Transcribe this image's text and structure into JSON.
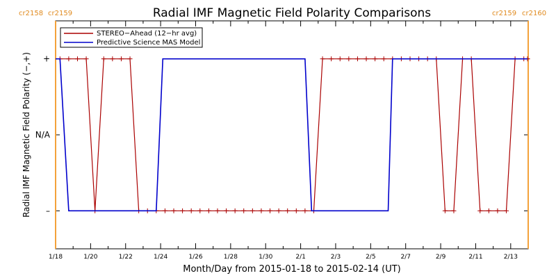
{
  "chart_data": {
    "type": "line",
    "title": "Radial IMF Magnetic Field Polarity Comparisons",
    "xlabel": "Month/Day from 2015-01-18 to 2015-02-14 (UT)",
    "ylabel": "Radial IMF Magnetic Field Polarity (−,+)",
    "y_categories": [
      "–",
      "N/A",
      "+"
    ],
    "y_category_values": [
      -1,
      0,
      1
    ],
    "ylim": [
      -1.5,
      1.5
    ],
    "xlim": [
      "2015-01-18",
      "2015-02-14"
    ],
    "x_ticks": [
      "1/18",
      "1/20",
      "1/22",
      "1/24",
      "1/26",
      "1/28",
      "1/30",
      "2/1",
      "2/3",
      "2/5",
      "2/7",
      "2/9",
      "2/11",
      "2/13"
    ],
    "carrington_markers": [
      {
        "date": "2015-01-18 00:00",
        "left_label": "cr2158",
        "right_label": "cr2159",
        "color": "#f4a23a"
      },
      {
        "date": "2015-02-14 00:00",
        "left_label": "cr2159",
        "right_label": "cr2160",
        "color": "#f4a23a"
      }
    ],
    "legend": {
      "placement": "top-left",
      "entries": [
        "STEREO−Ahead (12−hr avg)",
        "Predictive Science MAS Model"
      ]
    },
    "series": [
      {
        "name": "STEREO−Ahead (12−hr avg)",
        "color": "#aa0000",
        "marker": "plus",
        "points": [
          {
            "x": "2015-01-18 06:00",
            "y": 1
          },
          {
            "x": "2015-01-18 18:00",
            "y": 1
          },
          {
            "x": "2015-01-19 06:00",
            "y": 1
          },
          {
            "x": "2015-01-19 18:00",
            "y": 1
          },
          {
            "x": "2015-01-20 06:00",
            "y": -1
          },
          {
            "x": "2015-01-20 18:00",
            "y": 1
          },
          {
            "x": "2015-01-21 06:00",
            "y": 1
          },
          {
            "x": "2015-01-21 18:00",
            "y": 1
          },
          {
            "x": "2015-01-22 06:00",
            "y": 1
          },
          {
            "x": "2015-01-22 18:00",
            "y": -1
          },
          {
            "x": "2015-01-23 06:00",
            "y": -1
          },
          {
            "x": "2015-01-23 18:00",
            "y": -1
          },
          {
            "x": "2015-01-24 06:00",
            "y": -1
          },
          {
            "x": "2015-01-24 18:00",
            "y": -1
          },
          {
            "x": "2015-01-25 06:00",
            "y": -1
          },
          {
            "x": "2015-01-25 18:00",
            "y": -1
          },
          {
            "x": "2015-01-26 06:00",
            "y": -1
          },
          {
            "x": "2015-01-26 18:00",
            "y": -1
          },
          {
            "x": "2015-01-27 06:00",
            "y": -1
          },
          {
            "x": "2015-01-27 18:00",
            "y": -1
          },
          {
            "x": "2015-01-28 06:00",
            "y": -1
          },
          {
            "x": "2015-01-28 18:00",
            "y": -1
          },
          {
            "x": "2015-01-29 06:00",
            "y": -1
          },
          {
            "x": "2015-01-29 18:00",
            "y": -1
          },
          {
            "x": "2015-01-30 06:00",
            "y": -1
          },
          {
            "x": "2015-01-30 18:00",
            "y": -1
          },
          {
            "x": "2015-01-31 06:00",
            "y": -1
          },
          {
            "x": "2015-01-31 18:00",
            "y": -1
          },
          {
            "x": "2015-02-01 06:00",
            "y": -1
          },
          {
            "x": "2015-02-01 18:00",
            "y": -1
          },
          {
            "x": "2015-02-02 06:00",
            "y": 1
          },
          {
            "x": "2015-02-02 18:00",
            "y": 1
          },
          {
            "x": "2015-02-03 06:00",
            "y": 1
          },
          {
            "x": "2015-02-03 18:00",
            "y": 1
          },
          {
            "x": "2015-02-04 06:00",
            "y": 1
          },
          {
            "x": "2015-02-04 18:00",
            "y": 1
          },
          {
            "x": "2015-02-05 06:00",
            "y": 1
          },
          {
            "x": "2015-02-05 18:00",
            "y": 1
          },
          {
            "x": "2015-02-06 06:00",
            "y": 1
          },
          {
            "x": "2015-02-06 18:00",
            "y": 1
          },
          {
            "x": "2015-02-07 06:00",
            "y": 1
          },
          {
            "x": "2015-02-07 18:00",
            "y": 1
          },
          {
            "x": "2015-02-08 06:00",
            "y": 1
          },
          {
            "x": "2015-02-08 18:00",
            "y": 1
          },
          {
            "x": "2015-02-09 06:00",
            "y": -1
          },
          {
            "x": "2015-02-09 18:00",
            "y": -1
          },
          {
            "x": "2015-02-10 06:00",
            "y": 1
          },
          {
            "x": "2015-02-10 18:00",
            "y": 1
          },
          {
            "x": "2015-02-11 06:00",
            "y": -1
          },
          {
            "x": "2015-02-11 18:00",
            "y": -1
          },
          {
            "x": "2015-02-12 06:00",
            "y": -1
          },
          {
            "x": "2015-02-12 18:00",
            "y": -1
          },
          {
            "x": "2015-02-13 06:00",
            "y": 1
          },
          {
            "x": "2015-02-13 18:00",
            "y": 1
          },
          {
            "x": "2015-02-14 06:00",
            "y": 1
          },
          {
            "x": "2015-02-14 18:00",
            "y": 1
          }
        ]
      },
      {
        "name": "Predictive Science MAS Model",
        "color": "#0000cc",
        "steps": [
          {
            "x": "2015-01-18 00:00",
            "y": 1
          },
          {
            "x": "2015-01-18 06:00",
            "y": 1
          },
          {
            "x": "2015-01-18 18:00",
            "y": -1
          },
          {
            "x": "2015-01-23 18:00",
            "y": -1
          },
          {
            "x": "2015-01-24 03:00",
            "y": 1
          },
          {
            "x": "2015-02-01 06:00",
            "y": 1
          },
          {
            "x": "2015-02-01 15:00",
            "y": -1
          },
          {
            "x": "2015-02-06 00:00",
            "y": -1
          },
          {
            "x": "2015-02-06 06:00",
            "y": 1
          },
          {
            "x": "2015-02-14 18:00",
            "y": 1
          }
        ]
      }
    ]
  }
}
